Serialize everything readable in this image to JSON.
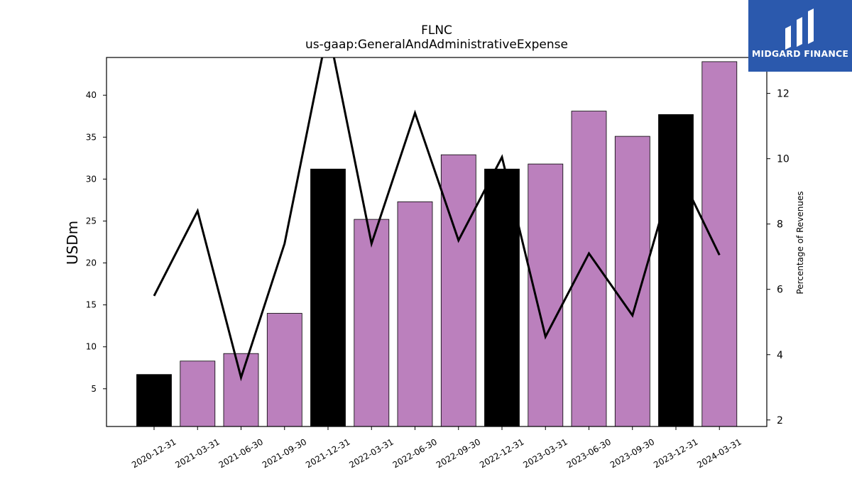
{
  "logo": {
    "text": "MIDGARD FINANCE",
    "bg_color": "#2b59ad"
  },
  "chart_data": {
    "type": "bar",
    "title": "FLNC",
    "subtitle": "us-gaap:GeneralAndAdministrativeExpense",
    "ylabel": "USDm",
    "y2label": "Percentage of Revenues",
    "categories": [
      "2020-12-31",
      "2021-03-31",
      "2021-06-30",
      "2021-09-30",
      "2021-12-31",
      "2022-03-31",
      "2022-06-30",
      "2022-09-30",
      "2022-12-31",
      "2023-03-31",
      "2023-06-30",
      "2023-09-30",
      "2023-12-31",
      "2024-03-31"
    ],
    "series": [
      {
        "type": "bar",
        "axis": "left",
        "values": [
          6.7,
          8.3,
          9.2,
          14.0,
          31.2,
          25.2,
          27.3,
          32.9,
          31.2,
          31.8,
          38.1,
          35.1,
          37.7,
          44.0
        ],
        "colors": [
          "#000000",
          "#bb80bd",
          "#bb80bd",
          "#bb80bd",
          "#000000",
          "#bb80bd",
          "#bb80bd",
          "#bb80bd",
          "#000000",
          "#bb80bd",
          "#bb80bd",
          "#bb80bd",
          "#000000",
          "#bb80bd"
        ]
      },
      {
        "type": "line",
        "axis": "right",
        "color": "#000000",
        "values": [
          5.8,
          8.4,
          3.3,
          7.4,
          14.0,
          7.4,
          11.4,
          7.5,
          10.05,
          4.55,
          7.1,
          5.2,
          9.8,
          7.05
        ]
      }
    ],
    "ylim": [
      0.5,
      44.5
    ],
    "y2lim": [
      1.8,
      13.1
    ],
    "yticks": [
      5,
      10,
      15,
      20,
      25,
      30,
      35,
      40
    ],
    "y2ticks": [
      2,
      4,
      6,
      8,
      10,
      12
    ],
    "grid": false,
    "legend": "none"
  }
}
